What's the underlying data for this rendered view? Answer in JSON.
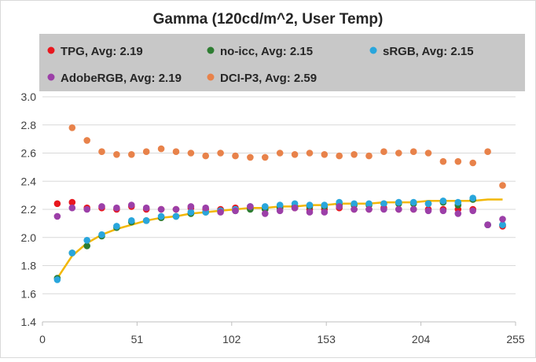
{
  "chart_data": {
    "type": "scatter",
    "title": "Gamma (120cd/m^2, User Temp)",
    "xlabel": "",
    "ylabel": "",
    "xlim": [
      0,
      255
    ],
    "ylim": [
      1.4,
      3.0
    ],
    "x_ticks": [
      0,
      51,
      102,
      153,
      204,
      255
    ],
    "y_ticks": [
      1.4,
      1.6,
      1.8,
      2.0,
      2.2,
      2.4,
      2.6,
      2.8,
      3.0
    ],
    "y_tick_labels": [
      "1.4",
      "1.6",
      "1.8",
      "2.0",
      "2.2",
      "2.4",
      "2.6",
      "2.8",
      "3.0"
    ],
    "grid": "horizontal",
    "legend_position": "top",
    "colors": {
      "TPG": "#e8171e",
      "no-icc": "#2e7d32",
      "sRGB": "#29a6dc",
      "AdobeRGB": "#9c3fa8",
      "DCI-P3": "#e8824a",
      "trend": "#f2b705",
      "legend_bg": "#c8c8c8",
      "grid": "#d9d9d9"
    },
    "legend": [
      {
        "name": "TPG, Avg: 2.19",
        "series": "TPG"
      },
      {
        "name": "no-icc, Avg: 2.15",
        "series": "no-icc"
      },
      {
        "name": "sRGB, Avg: 2.15",
        "series": "sRGB"
      },
      {
        "name": "AdobeRGB, Avg: 2.19",
        "series": "AdobeRGB"
      },
      {
        "name": "DCI-P3, Avg: 2.59",
        "series": "DCI-P3"
      }
    ],
    "series": [
      {
        "name": "TPG",
        "points": [
          [
            8,
            2.24
          ],
          [
            16,
            2.25
          ],
          [
            24,
            2.21
          ],
          [
            32,
            2.21
          ],
          [
            40,
            2.2
          ],
          [
            48,
            2.22
          ],
          [
            56,
            2.2
          ],
          [
            64,
            2.2
          ],
          [
            72,
            2.2
          ],
          [
            80,
            2.21
          ],
          [
            88,
            2.2
          ],
          [
            96,
            2.2
          ],
          [
            104,
            2.21
          ],
          [
            112,
            2.21
          ],
          [
            120,
            2.2
          ],
          [
            128,
            2.21
          ],
          [
            136,
            2.21
          ],
          [
            144,
            2.2
          ],
          [
            152,
            2.2
          ],
          [
            160,
            2.21
          ],
          [
            168,
            2.2
          ],
          [
            176,
            2.2
          ],
          [
            184,
            2.21
          ],
          [
            192,
            2.2
          ],
          [
            200,
            2.2
          ],
          [
            208,
            2.2
          ],
          [
            216,
            2.2
          ],
          [
            224,
            2.2
          ],
          [
            232,
            2.2
          ],
          [
            240,
            2.09
          ],
          [
            248,
            2.08
          ]
        ]
      },
      {
        "name": "no-icc",
        "points": [
          [
            8,
            1.71
          ],
          [
            16,
            1.89
          ],
          [
            24,
            1.94
          ],
          [
            32,
            2.01
          ],
          [
            40,
            2.07
          ],
          [
            48,
            2.11
          ],
          [
            56,
            2.12
          ],
          [
            64,
            2.14
          ],
          [
            72,
            2.15
          ],
          [
            80,
            2.17
          ],
          [
            88,
            2.18
          ],
          [
            96,
            2.19
          ],
          [
            104,
            2.19
          ],
          [
            112,
            2.2
          ],
          [
            120,
            2.2
          ],
          [
            128,
            2.21
          ],
          [
            136,
            2.22
          ],
          [
            144,
            2.22
          ],
          [
            152,
            2.22
          ],
          [
            160,
            2.23
          ],
          [
            168,
            2.23
          ],
          [
            176,
            2.23
          ],
          [
            184,
            2.24
          ],
          [
            192,
            2.24
          ],
          [
            200,
            2.24
          ],
          [
            208,
            2.24
          ],
          [
            216,
            2.25
          ],
          [
            224,
            2.23
          ],
          [
            232,
            2.27
          ],
          [
            240,
            2.09
          ],
          [
            248,
            2.09
          ]
        ]
      },
      {
        "name": "sRGB",
        "points": [
          [
            8,
            1.7
          ],
          [
            16,
            1.89
          ],
          [
            24,
            1.98
          ],
          [
            32,
            2.02
          ],
          [
            40,
            2.08
          ],
          [
            48,
            2.12
          ],
          [
            56,
            2.12
          ],
          [
            64,
            2.15
          ],
          [
            72,
            2.15
          ],
          [
            80,
            2.18
          ],
          [
            88,
            2.18
          ],
          [
            96,
            2.19
          ],
          [
            104,
            2.2
          ],
          [
            112,
            2.22
          ],
          [
            120,
            2.22
          ],
          [
            128,
            2.23
          ],
          [
            136,
            2.24
          ],
          [
            144,
            2.23
          ],
          [
            152,
            2.23
          ],
          [
            160,
            2.25
          ],
          [
            168,
            2.24
          ],
          [
            176,
            2.24
          ],
          [
            184,
            2.24
          ],
          [
            192,
            2.25
          ],
          [
            200,
            2.25
          ],
          [
            208,
            2.24
          ],
          [
            216,
            2.26
          ],
          [
            224,
            2.25
          ],
          [
            232,
            2.28
          ],
          [
            240,
            2.09
          ],
          [
            248,
            2.09
          ]
        ]
      },
      {
        "name": "AdobeRGB",
        "points": [
          [
            8,
            2.15
          ],
          [
            16,
            2.21
          ],
          [
            24,
            2.2
          ],
          [
            32,
            2.22
          ],
          [
            40,
            2.21
          ],
          [
            48,
            2.23
          ],
          [
            56,
            2.21
          ],
          [
            64,
            2.2
          ],
          [
            72,
            2.2
          ],
          [
            80,
            2.22
          ],
          [
            88,
            2.21
          ],
          [
            96,
            2.18
          ],
          [
            104,
            2.19
          ],
          [
            112,
            2.22
          ],
          [
            120,
            2.17
          ],
          [
            128,
            2.19
          ],
          [
            136,
            2.21
          ],
          [
            144,
            2.18
          ],
          [
            152,
            2.18
          ],
          [
            160,
            2.22
          ],
          [
            168,
            2.2
          ],
          [
            176,
            2.2
          ],
          [
            184,
            2.2
          ],
          [
            192,
            2.2
          ],
          [
            200,
            2.2
          ],
          [
            208,
            2.19
          ],
          [
            216,
            2.19
          ],
          [
            224,
            2.17
          ],
          [
            232,
            2.19
          ],
          [
            240,
            2.09
          ],
          [
            248,
            2.13
          ]
        ]
      },
      {
        "name": "DCI-P3",
        "points": [
          [
            16,
            2.78
          ],
          [
            24,
            2.69
          ],
          [
            32,
            2.61
          ],
          [
            40,
            2.59
          ],
          [
            48,
            2.59
          ],
          [
            56,
            2.61
          ],
          [
            64,
            2.63
          ],
          [
            72,
            2.61
          ],
          [
            80,
            2.6
          ],
          [
            88,
            2.58
          ],
          [
            96,
            2.6
          ],
          [
            104,
            2.58
          ],
          [
            112,
            2.57
          ],
          [
            120,
            2.57
          ],
          [
            128,
            2.6
          ],
          [
            136,
            2.59
          ],
          [
            144,
            2.6
          ],
          [
            152,
            2.59
          ],
          [
            160,
            2.58
          ],
          [
            168,
            2.59
          ],
          [
            176,
            2.58
          ],
          [
            184,
            2.61
          ],
          [
            192,
            2.6
          ],
          [
            200,
            2.61
          ],
          [
            208,
            2.6
          ],
          [
            216,
            2.54
          ],
          [
            224,
            2.54
          ],
          [
            232,
            2.53
          ],
          [
            240,
            2.61
          ],
          [
            248,
            2.37
          ]
        ]
      }
    ],
    "trendline": {
      "series": "sRGB",
      "points": [
        [
          8,
          1.71
        ],
        [
          16,
          1.87
        ],
        [
          24,
          1.96
        ],
        [
          32,
          2.02
        ],
        [
          40,
          2.06
        ],
        [
          48,
          2.09
        ],
        [
          56,
          2.12
        ],
        [
          64,
          2.14
        ],
        [
          72,
          2.15
        ],
        [
          80,
          2.17
        ],
        [
          88,
          2.18
        ],
        [
          96,
          2.19
        ],
        [
          104,
          2.2
        ],
        [
          112,
          2.21
        ],
        [
          120,
          2.21
        ],
        [
          128,
          2.22
        ],
        [
          136,
          2.22
        ],
        [
          144,
          2.23
        ],
        [
          152,
          2.23
        ],
        [
          160,
          2.24
        ],
        [
          168,
          2.24
        ],
        [
          176,
          2.24
        ],
        [
          184,
          2.25
        ],
        [
          192,
          2.25
        ],
        [
          200,
          2.25
        ],
        [
          208,
          2.26
        ],
        [
          216,
          2.26
        ],
        [
          224,
          2.26
        ],
        [
          232,
          2.26
        ],
        [
          240,
          2.27
        ],
        [
          248,
          2.27
        ]
      ]
    }
  }
}
